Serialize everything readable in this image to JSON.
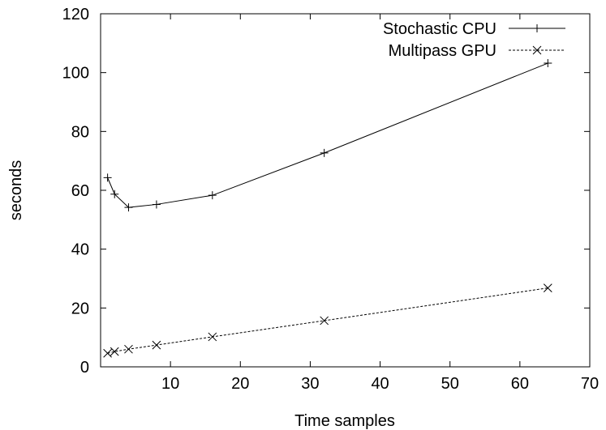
{
  "chart_data": {
    "type": "line",
    "title": "",
    "xlabel": "Time samples",
    "ylabel": "seconds",
    "xlim": [
      0,
      70
    ],
    "ylim": [
      0,
      120
    ],
    "xticks": [
      10,
      20,
      30,
      40,
      50,
      60,
      70
    ],
    "yticks": [
      0,
      20,
      40,
      60,
      80,
      100,
      120
    ],
    "grid": false,
    "legend_position": "top-right",
    "series": [
      {
        "name": "Stochastic CPU",
        "marker": "plus",
        "line_style": "solid",
        "color": "#000000",
        "points": [
          [
            1,
            64.3
          ],
          [
            2,
            58.7
          ],
          [
            4,
            54.2
          ],
          [
            8,
            55.2
          ],
          [
            16,
            58.3
          ],
          [
            32,
            72.7
          ],
          [
            64,
            103.2
          ]
        ]
      },
      {
        "name": "Multipass GPU",
        "marker": "cross",
        "line_style": "dashed",
        "color": "#000000",
        "points": [
          [
            1,
            4.6
          ],
          [
            2,
            5.2
          ],
          [
            4,
            6.0
          ],
          [
            8,
            7.4
          ],
          [
            16,
            10.2
          ],
          [
            32,
            15.7
          ],
          [
            64,
            26.8
          ]
        ]
      }
    ]
  }
}
